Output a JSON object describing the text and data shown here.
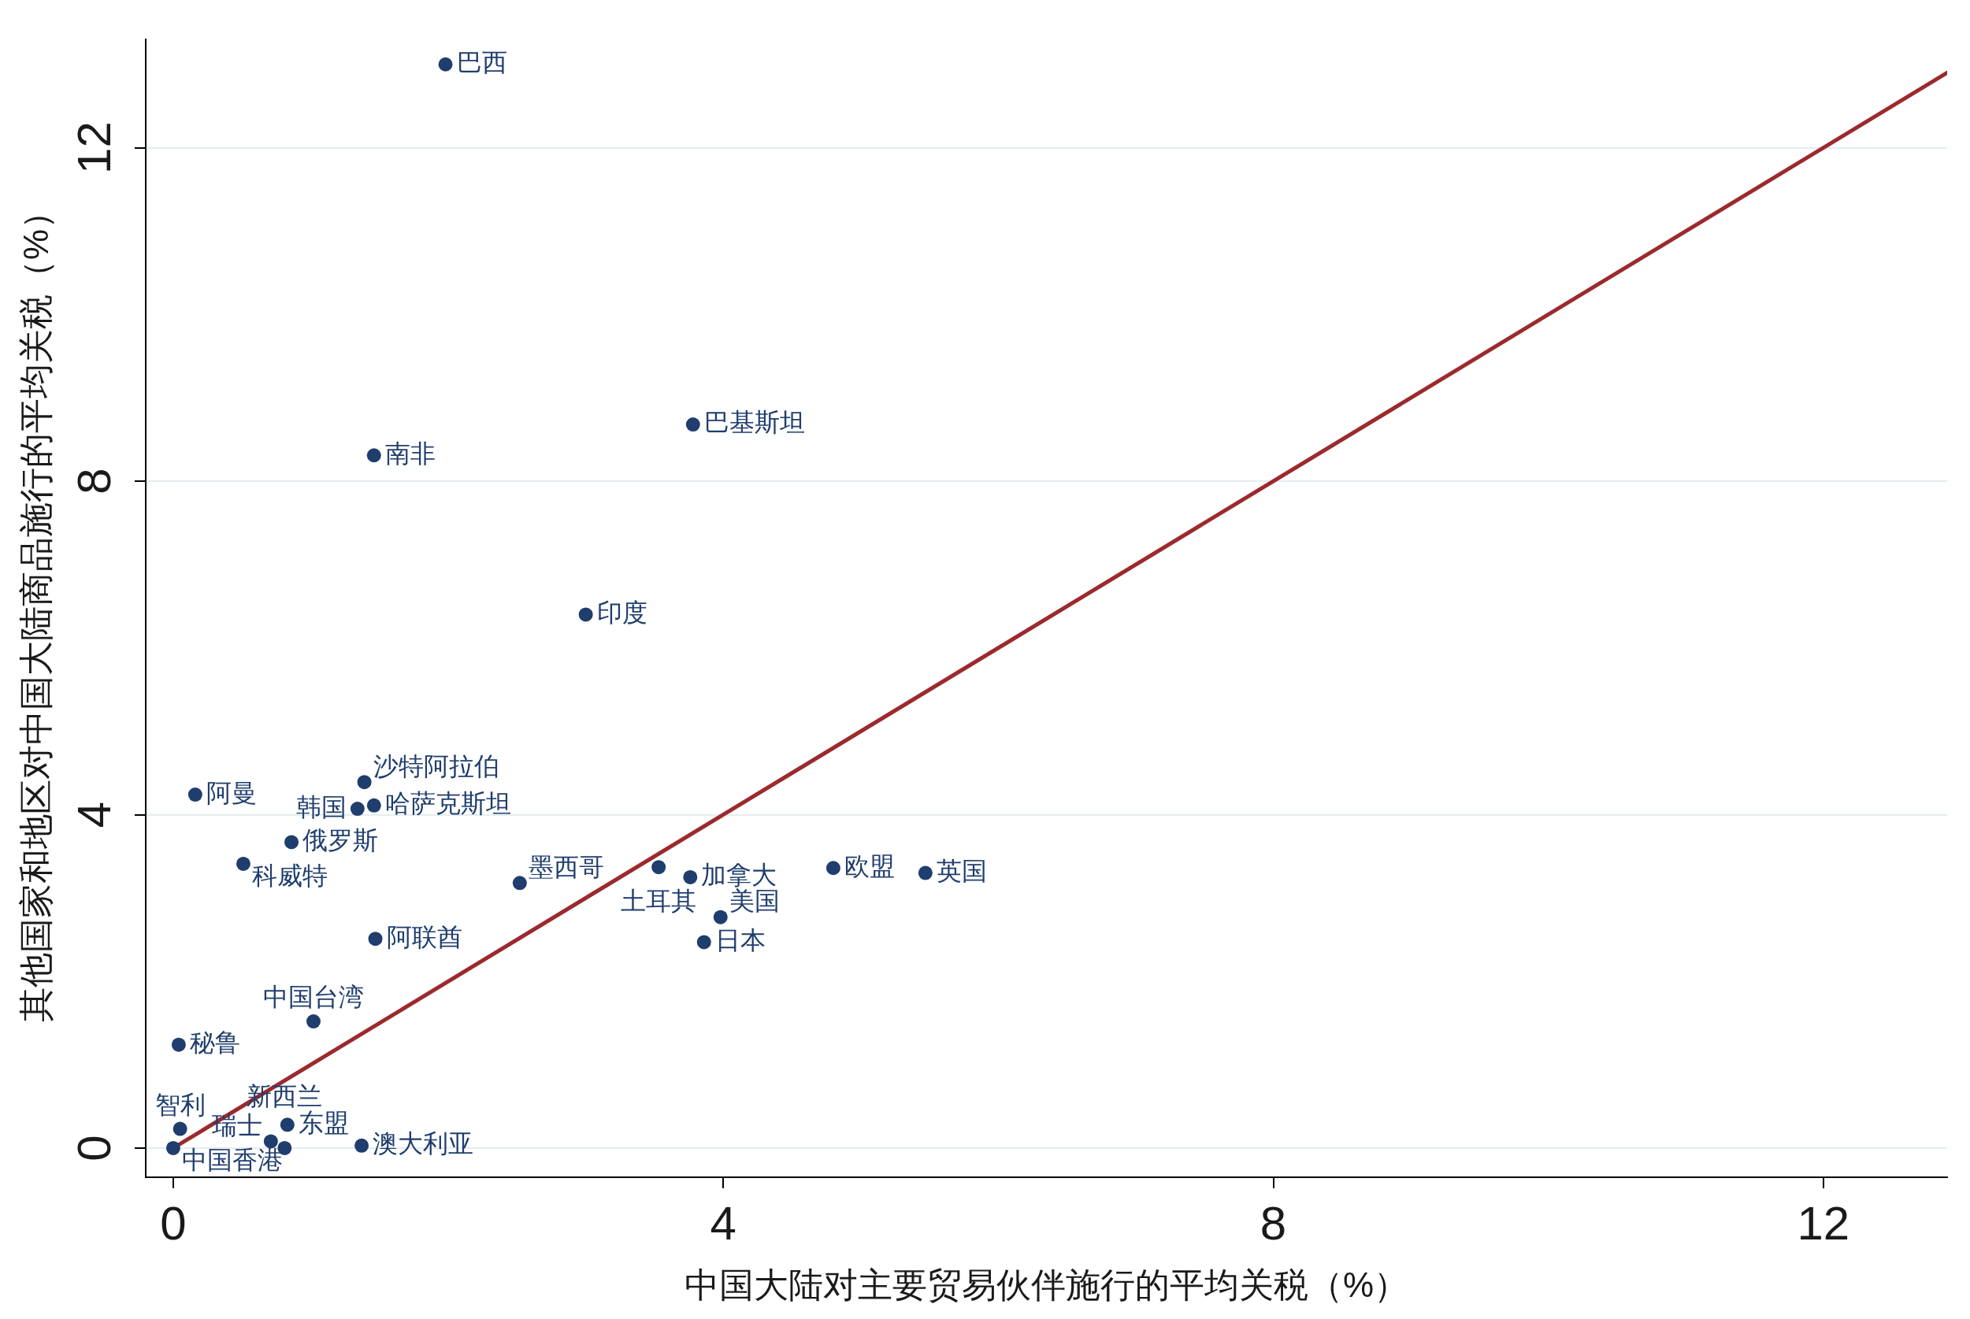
{
  "chart_data": {
    "type": "scatter",
    "xlabel": "中国大陆对主要贸易伙伴施行的平均关税（%）",
    "ylabel": "其他国家和地区对中国大陆商品施行的平均关税（%）",
    "xlim": [
      -0.2,
      12.9
    ],
    "ylim": [
      -0.35,
      13.3
    ],
    "xticks": [
      0,
      4,
      8,
      12
    ],
    "yticks": [
      0,
      4,
      8,
      12
    ],
    "grid": "y",
    "series": [
      {
        "color": "#1f3d6d",
        "marker": "circle",
        "x": [
          1.98,
          3.78,
          1.46,
          3.0,
          1.39,
          0.16,
          1.46,
          1.34,
          0.86,
          0.51,
          3.53,
          4.8,
          5.47,
          3.76,
          2.52,
          3.98,
          1.47,
          3.86,
          1.02,
          0.04,
          0.83,
          0.05,
          0.71,
          1.37,
          0.0,
          0.81
        ],
        "values": [
          13.0,
          8.68,
          8.31,
          6.4,
          4.39,
          4.24,
          4.11,
          4.07,
          3.67,
          3.41,
          3.37,
          3.36,
          3.3,
          3.25,
          3.18,
          2.77,
          2.51,
          2.47,
          1.52,
          1.24,
          0.28,
          0.23,
          0.08,
          0.03,
          0.0,
          0.0
        ]
      },
      {
        "type": "line",
        "color": "#9b2a2e",
        "marker": "none",
        "x": [
          0,
          12.9
        ],
        "values": [
          0,
          12.9
        ]
      }
    ],
    "annotations": [
      {
        "text": "巴西",
        "x": 1.98,
        "y": 13.0
      },
      {
        "text": "巴基斯坦",
        "x": 3.78,
        "y": 8.68
      },
      {
        "text": "南非",
        "x": 1.46,
        "y": 8.31
      },
      {
        "text": "印度",
        "x": 3.0,
        "y": 6.4
      },
      {
        "text": "沙特阿拉伯",
        "x": 1.39,
        "y": 4.39
      },
      {
        "text": "阿曼",
        "x": 0.16,
        "y": 4.24
      },
      {
        "text": "哈萨克斯坦",
        "x": 1.46,
        "y": 4.11
      },
      {
        "text": "韩国",
        "x": 1.34,
        "y": 4.07
      },
      {
        "text": "俄罗斯",
        "x": 0.86,
        "y": 3.67
      },
      {
        "text": "科威特",
        "x": 0.51,
        "y": 3.41
      },
      {
        "text": "土耳其",
        "x": 3.53,
        "y": 3.37
      },
      {
        "text": "欧盟",
        "x": 4.8,
        "y": 3.36
      },
      {
        "text": "英国",
        "x": 5.47,
        "y": 3.3
      },
      {
        "text": "加拿大",
        "x": 3.76,
        "y": 3.25
      },
      {
        "text": "墨西哥",
        "x": 2.52,
        "y": 3.18
      },
      {
        "text": "美国",
        "x": 3.98,
        "y": 2.77
      },
      {
        "text": "阿联酋",
        "x": 1.47,
        "y": 2.51
      },
      {
        "text": "日本",
        "x": 3.86,
        "y": 2.47
      },
      {
        "text": "中国台湾",
        "x": 1.02,
        "y": 1.52
      },
      {
        "text": "秘鲁",
        "x": 0.04,
        "y": 1.24
      },
      {
        "text": "东盟",
        "x": 0.83,
        "y": 0.28
      },
      {
        "text": "智利",
        "x": 0.05,
        "y": 0.23
      },
      {
        "text": "瑞士",
        "x": 0.71,
        "y": 0.08
      },
      {
        "text": "澳大利亚",
        "x": 1.37,
        "y": 0.03
      },
      {
        "text": "中国香港",
        "x": 0.0,
        "y": 0.0
      },
      {
        "text": "新西兰",
        "x": 0.81,
        "y": 0.0
      }
    ]
  }
}
